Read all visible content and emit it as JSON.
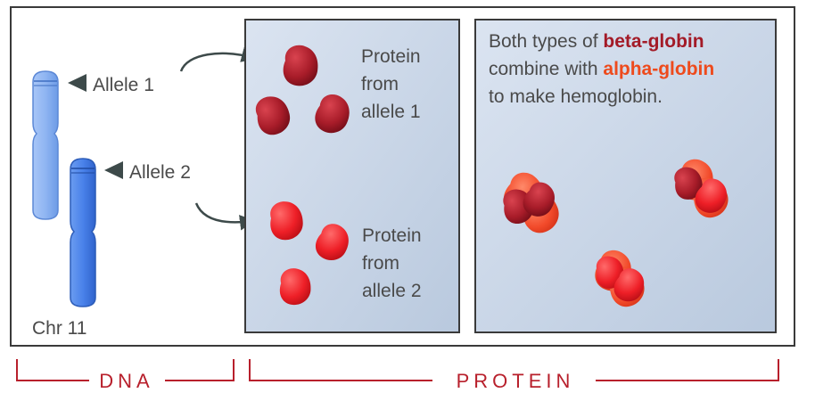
{
  "dna_panel": {
    "allele1_label": "Allele 1",
    "allele2_label": "Allele 2",
    "chromosome_label": "Chr 11"
  },
  "protein_panel": {
    "allele1_text": [
      "Protein",
      "from",
      "allele 1"
    ],
    "allele2_text": [
      "Protein",
      "from",
      "allele 2"
    ]
  },
  "hemoglobin_panel": {
    "line1_prefix": "Both types of ",
    "beta_term": "beta-globin",
    "line2_prefix": "combine with ",
    "alpha_term": "alpha-globin",
    "line3": "to make hemoglobin."
  },
  "captions": {
    "dna": "DNA",
    "protein": "PROTEIN"
  },
  "colors": {
    "frame": "#3a3a3a",
    "panel_fill": "#c9d5e6",
    "chromosome_light": "#8fb5f2",
    "chromosome_dark": "#4a82ea",
    "beta_globin": "#a31a27",
    "alpha_globin_protein": "#e8202a",
    "alpha_globin_text": "#ee4a1c",
    "caption": "#b8202c"
  }
}
